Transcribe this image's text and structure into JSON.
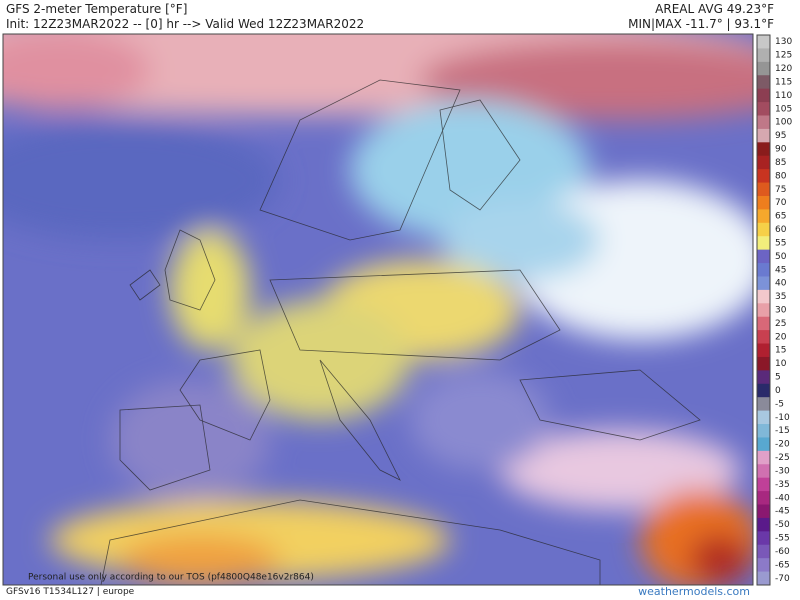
{
  "header": {
    "title": "GFS 2-meter Temperature [°F]",
    "init": "Init: 12Z23MAR2022 -- [0] hr --> Valid Wed 12Z23MAR2022",
    "areal_avg": "AREAL AVG 49.23°F",
    "min_max": "MIN|MAX -11.7° | 93.1°F"
  },
  "map": {
    "watermark": "Personal use only according to our TOS (pf4800Q48e16v2r864)"
  },
  "footer": {
    "model": "GFSv16 T1534L127 | europe",
    "site": "weathermodels.com"
  },
  "colorbar": {
    "levels": [
      130,
      125,
      120,
      115,
      110,
      105,
      100,
      95,
      90,
      85,
      80,
      75,
      70,
      65,
      60,
      55,
      50,
      45,
      40,
      35,
      30,
      25,
      20,
      15,
      10,
      5,
      0,
      -5,
      -10,
      -15,
      -20,
      -25,
      -30,
      -35,
      -40,
      -45,
      -50,
      -55,
      -60,
      -65,
      -70
    ],
    "colors": [
      "#c8c8c8",
      "#b0b0b0",
      "#959595",
      "#7d5a66",
      "#8c3e52",
      "#a24c60",
      "#bf7888",
      "#d6a8b0",
      "#8a1c1c",
      "#a82222",
      "#c83420",
      "#de5a1e",
      "#ee7e1e",
      "#f6a82c",
      "#f6d048",
      "#f2ee7c",
      "#6c64c4",
      "#6a7ad0",
      "#7c92d8",
      "#f2c8cc",
      "#e8a0a8",
      "#d86878",
      "#c84050",
      "#b02030",
      "#8a1828",
      "#5a2a7a",
      "#2a2a6a",
      "#8a8a9a",
      "#a8c8e0",
      "#80b8d8",
      "#58a8d0",
      "#e0a0c8",
      "#d070b0",
      "#c04098",
      "#a82880",
      "#8a1870",
      "#5a1a8a",
      "#6a38a8",
      "#7a58b8",
      "#8c7ac8",
      "#9a9ad0"
    ]
  }
}
